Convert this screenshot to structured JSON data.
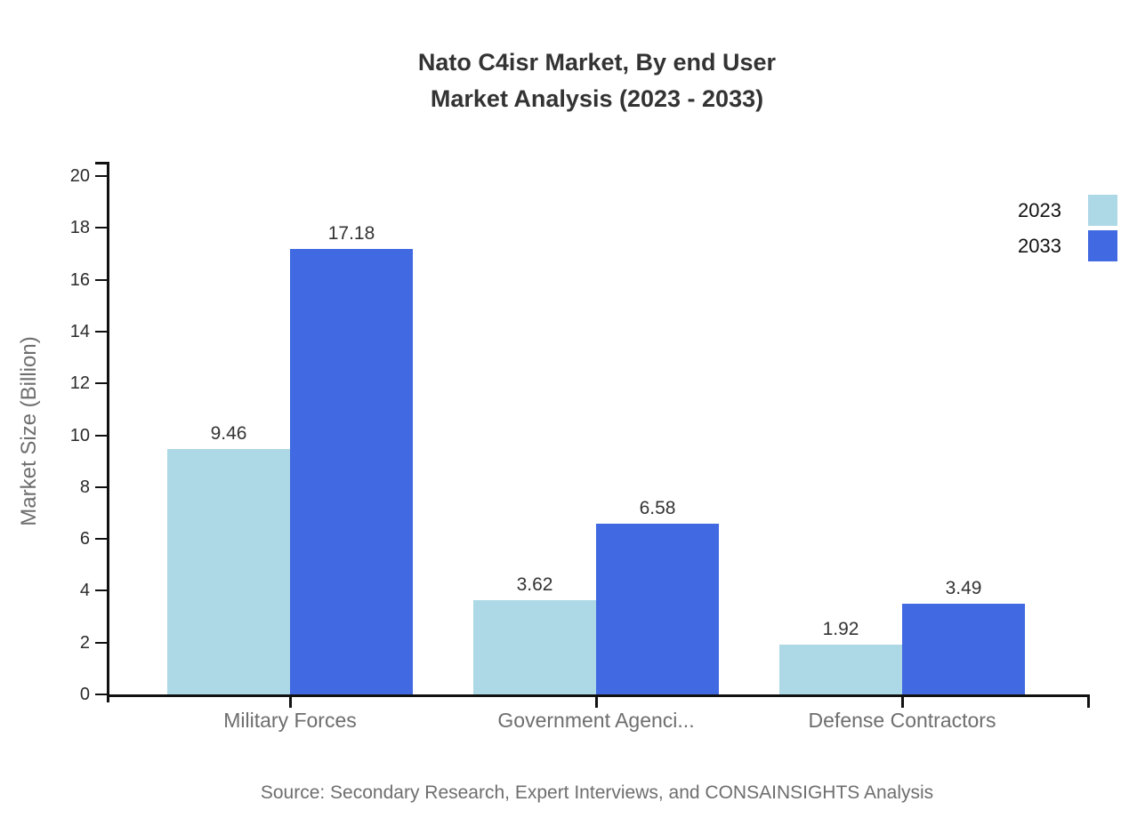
{
  "title": {
    "line1": "Nato C4isr Market, By end User",
    "line2": "Market Analysis (2023 - 2033)"
  },
  "y_axis": {
    "label": "Market Size (Billion)"
  },
  "source": "Source: Secondary Research, Expert Interviews, and CONSAINSIGHTS Analysis",
  "legend": [
    {
      "label": "2023",
      "color": "#ADD8E6"
    },
    {
      "label": "2033",
      "color": "#4169E1"
    }
  ],
  "chart_data": {
    "type": "bar",
    "title": "Nato C4isr Market, By end User Market Analysis (2023 - 2033)",
    "categories": [
      "Military Forces",
      "Government Agenci...",
      "Defense Contractors"
    ],
    "series": [
      {
        "name": "2023",
        "color": "#ADD8E6",
        "values": [
          9.46,
          3.62,
          1.92
        ]
      },
      {
        "name": "2033",
        "color": "#4169E1",
        "values": [
          17.18,
          6.58,
          3.49
        ]
      }
    ],
    "xlabel": "",
    "ylabel": "Market Size (Billion)",
    "ylim": [
      0,
      20
    ],
    "ytick_step": 2,
    "grid": false,
    "legend_position": "top-right",
    "value_labels": true
  }
}
